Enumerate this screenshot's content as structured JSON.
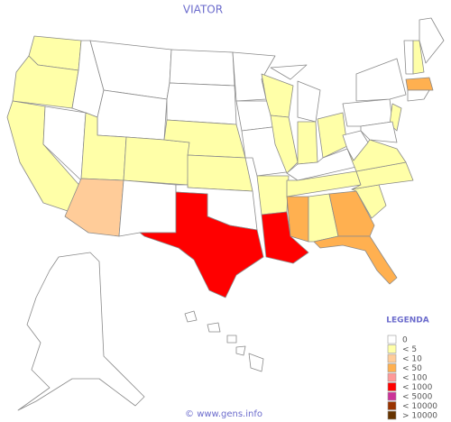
{
  "title": "VIATOR",
  "legend": {
    "title": "LEGENDA",
    "items": [
      {
        "label": "0",
        "color": "#ffffff"
      },
      {
        "label": "< 5",
        "color": "#ffffa8"
      },
      {
        "label": "< 10",
        "color": "#ffcc99"
      },
      {
        "label": "< 50",
        "color": "#ffb050"
      },
      {
        "label": "< 100",
        "color": "#ff9999"
      },
      {
        "label": "< 1000",
        "color": "#ff0000"
      },
      {
        "label": "< 5000",
        "color": "#cc3399"
      },
      {
        "label": "< 10000",
        "color": "#993300"
      },
      {
        "label": "> 10000",
        "color": "#663300"
      }
    ]
  },
  "footer": "© www.gens.info"
}
